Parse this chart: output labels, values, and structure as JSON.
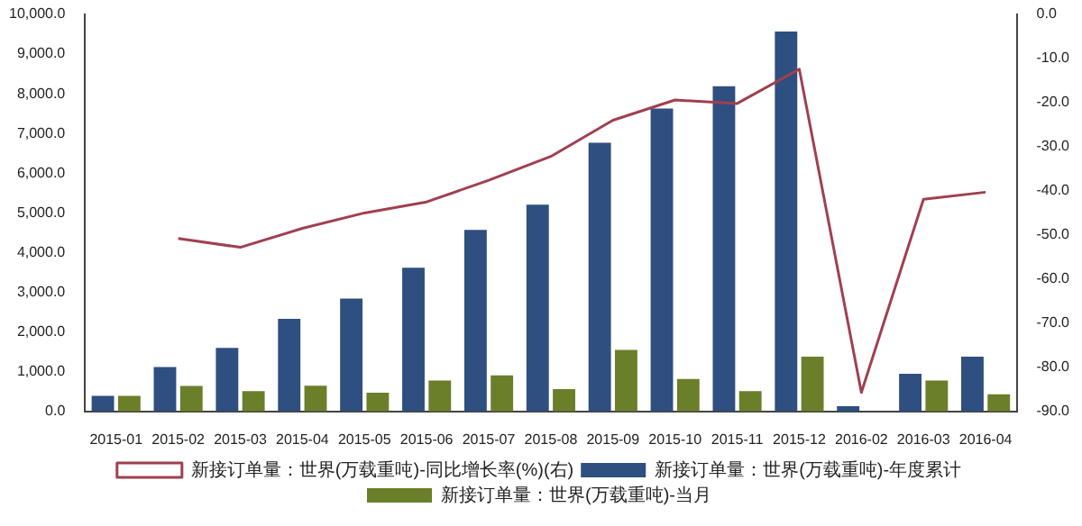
{
  "chart_data": {
    "type": "bar",
    "categories": [
      "2015-01",
      "2015-02",
      "2015-03",
      "2015-04",
      "2015-05",
      "2015-06",
      "2015-07",
      "2015-08",
      "2015-09",
      "2015-10",
      "2015-11",
      "2015-12",
      "2016-02",
      "2016-03",
      "2016-04"
    ],
    "series": [
      {
        "name": "新接订单量：世界(万载重吨)-年度累计",
        "color": "#2e4f7f",
        "values": [
          390,
          1120,
          1600,
          2330,
          2840,
          3620,
          4570,
          5210,
          6770,
          7630,
          8190,
          9570,
          130,
          950,
          1380
        ]
      },
      {
        "name": "新接订单量：世界(万载重吨)-当月",
        "color": "#6b7f2a",
        "values": [
          390,
          640,
          510,
          650,
          470,
          780,
          910,
          560,
          1550,
          820,
          510,
          1380,
          null,
          780,
          430
        ]
      },
      {
        "name": "新接订单量：世界(万载重吨)-同比增长率(%)(右)",
        "type": "line",
        "axis": "y2",
        "color": "#a04050",
        "values": [
          null,
          -50.8,
          -52.8,
          -48.5,
          -45,
          -42.5,
          -37.6,
          -32.2,
          -24,
          -19.4,
          -20.2,
          -12.4,
          -85.7,
          -41.9,
          -40.3
        ]
      }
    ],
    "ylim": [
      0,
      10000
    ],
    "yticks": [
      {
        "value": 0,
        "label": "0.0"
      },
      {
        "value": 1000,
        "label": "1,000.0"
      },
      {
        "value": 2000,
        "label": "2,000.0"
      },
      {
        "value": 3000,
        "label": "3,000.0"
      },
      {
        "value": 4000,
        "label": "4,000.0"
      },
      {
        "value": 5000,
        "label": "5,000.0"
      },
      {
        "value": 6000,
        "label": "6,000.0"
      },
      {
        "value": 7000,
        "label": "7,000.0"
      },
      {
        "value": 8000,
        "label": "8,000.0"
      },
      {
        "value": 9000,
        "label": "9,000.0"
      },
      {
        "value": 10000,
        "label": "10,000.0"
      }
    ],
    "y2lim": [
      -90,
      0
    ],
    "y2ticks": [
      {
        "value": -90,
        "label": "-90.0"
      },
      {
        "value": -80,
        "label": "-80.0"
      },
      {
        "value": -70,
        "label": "-70.0"
      },
      {
        "value": -60,
        "label": "-60.0"
      },
      {
        "value": -50,
        "label": "-50.0"
      },
      {
        "value": -40,
        "label": "-40.0"
      },
      {
        "value": -30,
        "label": "-30.0"
      },
      {
        "value": -20,
        "label": "-20.0"
      },
      {
        "value": -10,
        "label": "-10.0"
      },
      {
        "value": 0,
        "label": "0.0"
      }
    ],
    "grid": false,
    "legend": "bottom",
    "marker": "none"
  }
}
